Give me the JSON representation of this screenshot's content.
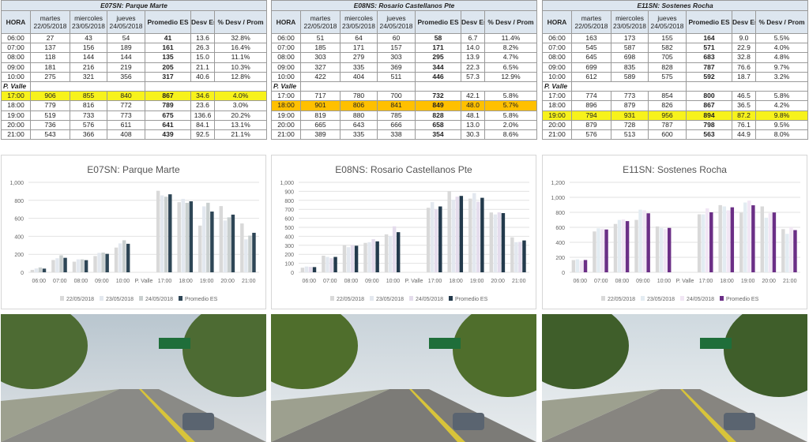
{
  "columns": [
    "HORA",
    "martes\n22/05/2018",
    "miercoles\n23/05/2018",
    "jueves\n24/05/2018",
    "Promedio ES",
    "Desv Est",
    "% Desv / Prom"
  ],
  "pvalle_label": "P. Valle",
  "legend": [
    "22/05/2018",
    "23/05/2018",
    "24/05/2018",
    "Promedio ES"
  ],
  "stations": [
    {
      "title": "E07SN: Parque Marte",
      "chart_title": "E07SN: Parque Marte",
      "highlight": "17:00",
      "highlight_color": "#f7f21c",
      "am": [
        [
          "06:00",
          "27",
          "43",
          "54",
          "41",
          "13.6",
          "32.8%"
        ],
        [
          "07:00",
          "137",
          "156",
          "189",
          "161",
          "26.3",
          "16.4%"
        ],
        [
          "08:00",
          "118",
          "144",
          "144",
          "135",
          "15.0",
          "11.1%"
        ],
        [
          "09:00",
          "181",
          "216",
          "219",
          "205",
          "21.1",
          "10.3%"
        ],
        [
          "10:00",
          "275",
          "321",
          "356",
          "317",
          "40.6",
          "12.8%"
        ]
      ],
      "pm": [
        [
          "17:00",
          "906",
          "855",
          "840",
          "867",
          "34.6",
          "4.0%"
        ],
        [
          "18:00",
          "779",
          "816",
          "772",
          "789",
          "23.6",
          "3.0%"
        ],
        [
          "19:00",
          "519",
          "733",
          "773",
          "675",
          "136.6",
          "20.2%"
        ],
        [
          "20:00",
          "736",
          "576",
          "611",
          "641",
          "84.1",
          "13.1%"
        ],
        [
          "21:00",
          "543",
          "366",
          "408",
          "439",
          "92.5",
          "21.1%"
        ]
      ]
    },
    {
      "title": "E08NS: Rosario Castellanos Pte",
      "chart_title": "E08NS: Rosario Castellanos Pte",
      "highlight": "18:00",
      "highlight_color": "#ffc000",
      "am": [
        [
          "06:00",
          "51",
          "64",
          "60",
          "58",
          "6.7",
          "11.4%"
        ],
        [
          "07:00",
          "185",
          "171",
          "157",
          "171",
          "14.0",
          "8.2%"
        ],
        [
          "08:00",
          "303",
          "279",
          "303",
          "295",
          "13.9",
          "4.7%"
        ],
        [
          "09:00",
          "327",
          "335",
          "369",
          "344",
          "22.3",
          "6.5%"
        ],
        [
          "10:00",
          "422",
          "404",
          "511",
          "446",
          "57.3",
          "12.9%"
        ]
      ],
      "pm": [
        [
          "17:00",
          "717",
          "780",
          "700",
          "732",
          "42.1",
          "5.8%"
        ],
        [
          "18:00",
          "901",
          "806",
          "841",
          "849",
          "48.0",
          "5.7%"
        ],
        [
          "19:00",
          "819",
          "880",
          "785",
          "828",
          "48.1",
          "5.8%"
        ],
        [
          "20:00",
          "665",
          "643",
          "666",
          "658",
          "13.0",
          "2.0%"
        ],
        [
          "21:00",
          "389",
          "335",
          "338",
          "354",
          "30.3",
          "8.6%"
        ]
      ]
    },
    {
      "title": "E11SN: Sostenes Rocha",
      "chart_title": "E11SN: Sostenes Rocha",
      "highlight": "19:00",
      "highlight_color": "#f7f21c",
      "am": [
        [
          "06:00",
          "163",
          "173",
          "155",
          "164",
          "9.0",
          "5.5%"
        ],
        [
          "07:00",
          "545",
          "587",
          "582",
          "571",
          "22.9",
          "4.0%"
        ],
        [
          "08:00",
          "645",
          "698",
          "705",
          "683",
          "32.8",
          "4.8%"
        ],
        [
          "09:00",
          "699",
          "835",
          "828",
          "787",
          "76.6",
          "9.7%"
        ],
        [
          "10:00",
          "612",
          "589",
          "575",
          "592",
          "18.7",
          "3.2%"
        ]
      ],
      "pm": [
        [
          "17:00",
          "774",
          "773",
          "854",
          "800",
          "46.5",
          "5.8%"
        ],
        [
          "18:00",
          "896",
          "879",
          "826",
          "867",
          "36.5",
          "4.2%"
        ],
        [
          "19:00",
          "794",
          "931",
          "956",
          "894",
          "87.2",
          "9.8%"
        ],
        [
          "20:00",
          "879",
          "728",
          "787",
          "798",
          "76.1",
          "9.5%"
        ],
        [
          "21:00",
          "576",
          "513",
          "600",
          "563",
          "44.9",
          "8.0%"
        ]
      ]
    }
  ],
  "chart_data": [
    {
      "type": "bar",
      "title": "E07SN: Parque Marte",
      "categories": [
        "06:00",
        "07:00",
        "08:00",
        "09:00",
        "10:00",
        "P. Valle",
        "17:00",
        "18:00",
        "19:00",
        "20:00",
        "21:00"
      ],
      "series": [
        {
          "name": "22/05/2018",
          "values": [
            27,
            137,
            118,
            181,
            275,
            null,
            906,
            779,
            519,
            736,
            543
          ]
        },
        {
          "name": "23/05/2018",
          "values": [
            43,
            156,
            144,
            216,
            321,
            null,
            855,
            816,
            733,
            576,
            366
          ]
        },
        {
          "name": "24/05/2018",
          "values": [
            54,
            189,
            144,
            219,
            356,
            null,
            840,
            772,
            773,
            611,
            408
          ]
        },
        {
          "name": "Promedio ES",
          "values": [
            41,
            161,
            135,
            205,
            317,
            null,
            867,
            789,
            675,
            641,
            439
          ]
        }
      ],
      "ylim": [
        0,
        1000
      ],
      "yticks": [
        0,
        200,
        400,
        600,
        800,
        1000
      ],
      "ytick_labels": [
        "0",
        "200",
        "400",
        "600",
        "800",
        "1,000"
      ],
      "colors": [
        "#d9d9d9",
        "#e3e8ef",
        "#c9cfcf",
        "#2e4656"
      ],
      "legend": "bottom"
    },
    {
      "type": "bar",
      "title": "E08NS: Rosario Castellanos Pte",
      "categories": [
        "06:00",
        "07:00",
        "08:00",
        "09:00",
        "10:00",
        "P. Valle",
        "17:00",
        "18:00",
        "19:00",
        "20:00",
        "21:00"
      ],
      "series": [
        {
          "name": "22/05/2018",
          "values": [
            51,
            185,
            303,
            327,
            422,
            null,
            717,
            901,
            819,
            665,
            389
          ]
        },
        {
          "name": "23/05/2018",
          "values": [
            64,
            171,
            279,
            335,
            404,
            null,
            780,
            806,
            880,
            643,
            335
          ]
        },
        {
          "name": "24/05/2018",
          "values": [
            60,
            157,
            303,
            369,
            511,
            null,
            700,
            841,
            785,
            666,
            338
          ]
        },
        {
          "name": "Promedio ES",
          "values": [
            58,
            171,
            295,
            344,
            446,
            null,
            732,
            849,
            828,
            658,
            354
          ]
        }
      ],
      "ylim": [
        0,
        1000
      ],
      "yticks": [
        0,
        100,
        200,
        300,
        400,
        500,
        600,
        700,
        800,
        900,
        1000
      ],
      "ytick_labels": [
        "0",
        "100",
        "200",
        "300",
        "400",
        "500",
        "600",
        "700",
        "800",
        "900",
        "1,000"
      ],
      "colors": [
        "#d9d9d9",
        "#e3e8ef",
        "#e4dcec",
        "#233a4c"
      ],
      "legend": "bottom"
    },
    {
      "type": "bar",
      "title": "E11SN: Sostenes Rocha",
      "categories": [
        "06:00",
        "07:00",
        "08:00",
        "09:00",
        "10:00",
        "P. Valle",
        "17:00",
        "18:00",
        "19:00",
        "20:00",
        "21:00"
      ],
      "series": [
        {
          "name": "22/05/2018",
          "values": [
            163,
            545,
            645,
            699,
            612,
            null,
            774,
            896,
            794,
            879,
            576
          ]
        },
        {
          "name": "23/05/2018",
          "values": [
            173,
            587,
            698,
            835,
            589,
            null,
            773,
            879,
            931,
            728,
            513
          ]
        },
        {
          "name": "24/05/2018",
          "values": [
            155,
            582,
            705,
            828,
            575,
            null,
            854,
            826,
            956,
            787,
            600
          ]
        },
        {
          "name": "Promedio ES",
          "values": [
            164,
            571,
            683,
            787,
            592,
            null,
            800,
            867,
            894,
            798,
            563
          ]
        }
      ],
      "ylim": [
        0,
        1200
      ],
      "yticks": [
        0,
        200,
        400,
        600,
        800,
        1000,
        1200
      ],
      "ytick_labels": [
        "0",
        "200",
        "400",
        "600",
        "800",
        "1,000",
        "1,200"
      ],
      "colors": [
        "#d9d9d9",
        "#e3ecf2",
        "#f1e6f4",
        "#6b2f86"
      ],
      "legend": "bottom"
    }
  ]
}
